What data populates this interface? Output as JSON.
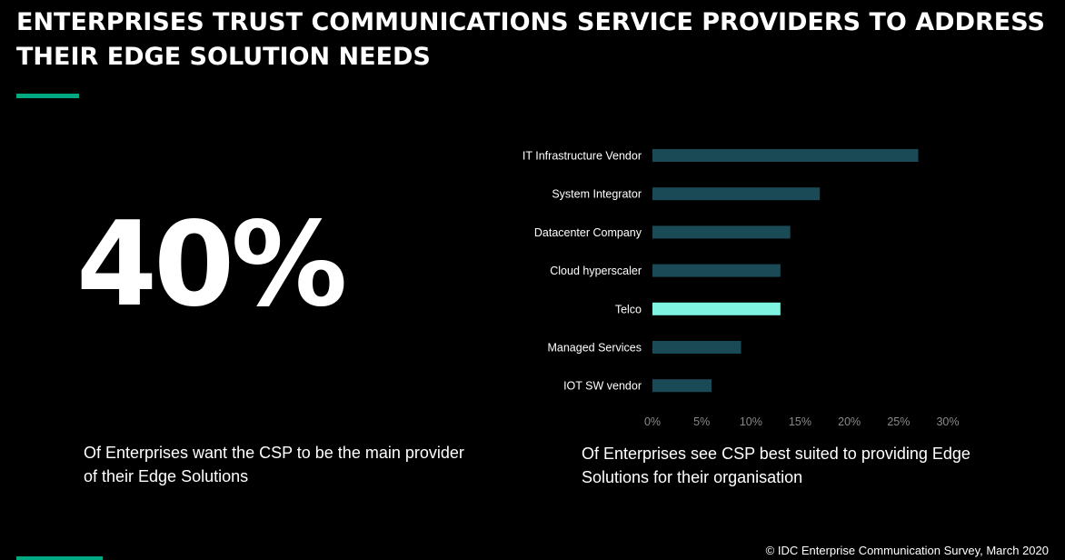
{
  "slide": {
    "title": "ENTERPRISES TRUST COMMUNICATIONS SERVICE PROVIDERS TO ADDRESS THEIR EDGE SOLUTION NEEDS",
    "accent_color": "#01a982"
  },
  "stat": {
    "value": "40%",
    "caption": "Of Enterprises want the CSP to be the main provider of their Edge Solutions"
  },
  "chart_caption": "Of Enterprises see CSP best suited to providing Edge Solutions for their organisation",
  "source": "© IDC Enterprise Communication Survey, March 2020",
  "chart_data": {
    "type": "bar",
    "orientation": "horizontal",
    "categories": [
      "IT Infrastructure Vendor",
      "System Integrator",
      "Datacenter Company",
      "Cloud hyperscaler",
      "Telco",
      "Managed Services",
      "IOT SW vendor"
    ],
    "values": [
      27,
      17,
      14,
      13,
      13,
      9,
      6
    ],
    "highlight_index": 4,
    "xlim": [
      0,
      30
    ],
    "xticks": [
      0,
      5,
      10,
      15,
      20,
      25,
      30
    ],
    "tick_labels": [
      "0%",
      "5%",
      "10%",
      "15%",
      "20%",
      "25%",
      "30%"
    ],
    "grid": false,
    "bar_color": "#1b4a57",
    "highlight_color": "#7ff4e0",
    "title": "",
    "xlabel": "",
    "ylabel": ""
  }
}
